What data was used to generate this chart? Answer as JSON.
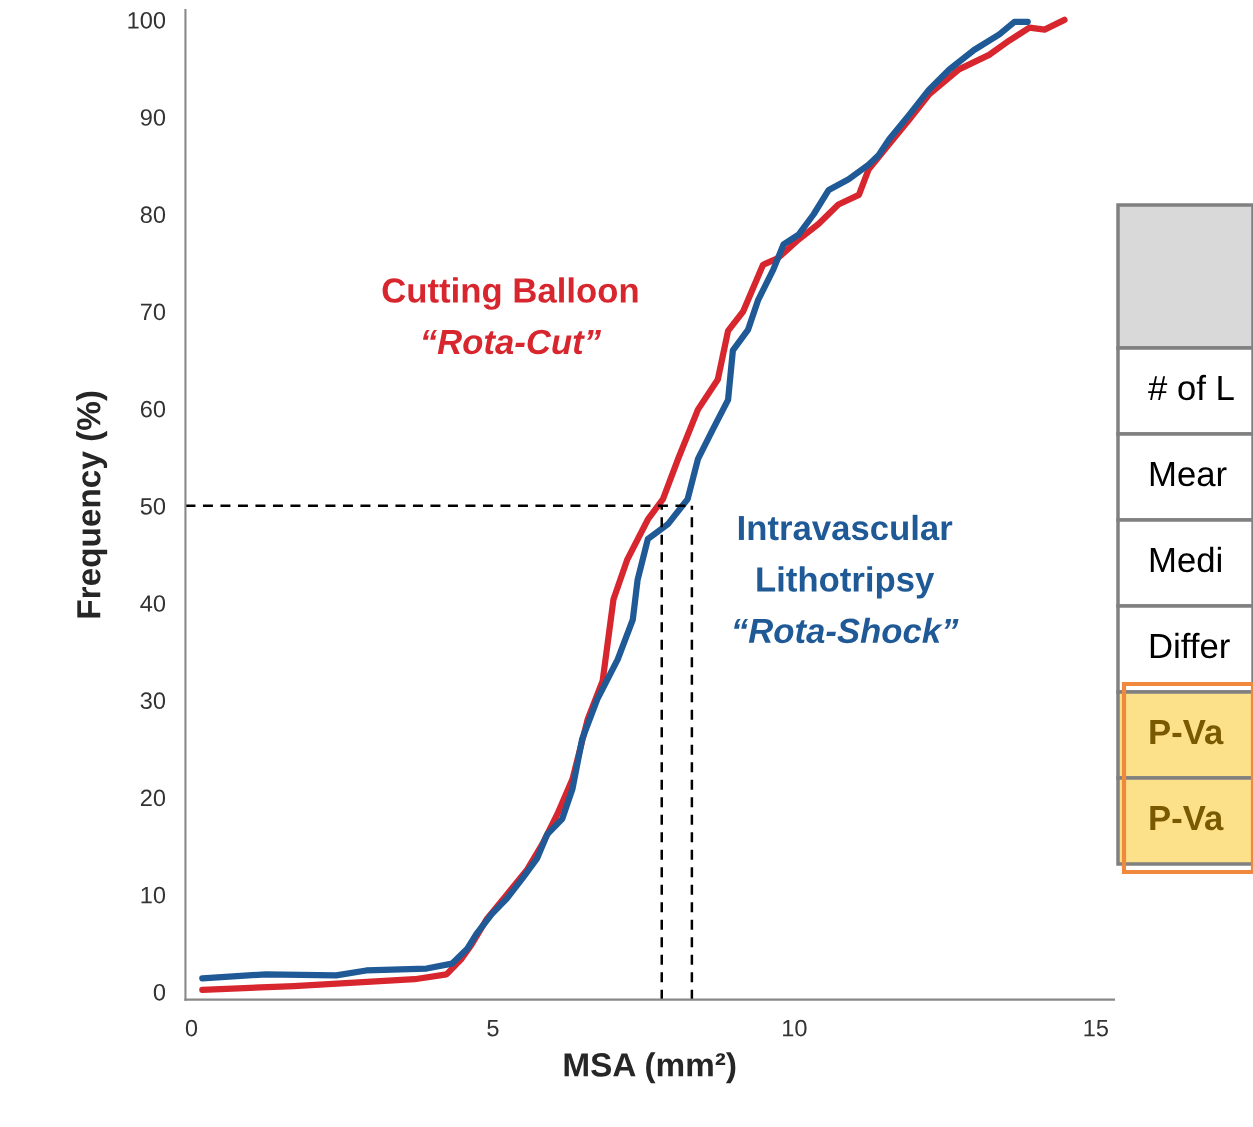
{
  "chart_data": {
    "type": "line",
    "xlabel": "MSA (mm²)",
    "ylabel": "Frequency (%)",
    "xlim": [
      -0.1,
      15.3
    ],
    "ylim": [
      -0.8,
      101
    ],
    "xticks": [
      0,
      5,
      10,
      15
    ],
    "yticks": [
      0,
      10,
      20,
      30,
      40,
      50,
      60,
      70,
      80,
      90,
      100
    ],
    "grid": false,
    "legend": false,
    "marker": "none",
    "line_style": "solid",
    "series": [
      {
        "name": "Cutting Balloon\n“Rota-Cut”",
        "color": "#d7262e",
        "x": [
          0.18,
          1.7,
          3.7,
          4.23,
          4.48,
          4.65,
          4.9,
          5.23,
          5.57,
          5.82,
          6.07,
          6.32,
          6.57,
          6.82,
          7.0,
          7.23,
          7.57,
          7.82,
          8.07,
          8.4,
          8.73,
          8.9,
          9.15,
          9.48,
          9.73,
          10.07,
          10.4,
          10.73,
          11.07,
          11.23,
          11.57,
          11.9,
          12.23,
          12.73,
          13.23,
          13.57,
          13.9,
          14.15,
          14.48
        ],
        "values": [
          0.2,
          0.6,
          1.3,
          1.8,
          3.4,
          4.9,
          7.5,
          10,
          12.6,
          15.2,
          18.3,
          21.9,
          28,
          32,
          40.4,
          44.5,
          48.6,
          50.7,
          54.8,
          59.9,
          63,
          68,
          70,
          74.8,
          75.5,
          77.4,
          79,
          81,
          82,
          84.6,
          87.2,
          89.7,
          92.3,
          94.9,
          96.4,
          97.9,
          99.2,
          99,
          100
        ]
      },
      {
        "name": "Intravascular\nLithotripsy\n“Rota-Shock”",
        "color": "#1f5a96",
        "x": [
          0.18,
          1.23,
          2.4,
          2.9,
          3.9,
          4.32,
          4.57,
          4.73,
          4.98,
          5.23,
          5.48,
          5.73,
          5.9,
          6.15,
          6.32,
          6.48,
          6.73,
          7.07,
          7.32,
          7.4,
          7.57,
          7.9,
          8.23,
          8.4,
          8.65,
          8.9,
          8.98,
          9.23,
          9.4,
          9.65,
          9.82,
          10.07,
          10.32,
          10.57,
          10.9,
          11.23,
          11.4,
          11.57,
          11.9,
          12.23,
          12.57,
          12.98,
          13.4,
          13.65,
          13.87
        ],
        "values": [
          1.4,
          1.8,
          1.7,
          2.2,
          2.4,
          2.9,
          4.4,
          6,
          8,
          9.6,
          11.6,
          13.7,
          16.2,
          17.8,
          20.9,
          26,
          30.1,
          34.2,
          38.3,
          42.4,
          46.6,
          48.1,
          50.7,
          54.8,
          57.9,
          60.9,
          66,
          68.1,
          71.2,
          74.3,
          76.9,
          77.9,
          80,
          82.5,
          83.6,
          85.1,
          86.1,
          87.7,
          90.2,
          92.8,
          94.9,
          96.9,
          98.5,
          99.8,
          99.8
        ]
      }
    ],
    "ref_lines": [
      {
        "axis": "y",
        "value": 50,
        "line_style": "dashed",
        "color": "#000000"
      },
      {
        "axis": "x",
        "value": 7.8,
        "line_style": "dashed",
        "color": "#000000"
      },
      {
        "axis": "x",
        "value": 8.3,
        "line_style": "dashed",
        "color": "#000000"
      }
    ],
    "annotations": [
      "# of L",
      "Mear",
      "Medi",
      "Differ",
      "P-Va",
      "P-Va"
    ]
  }
}
